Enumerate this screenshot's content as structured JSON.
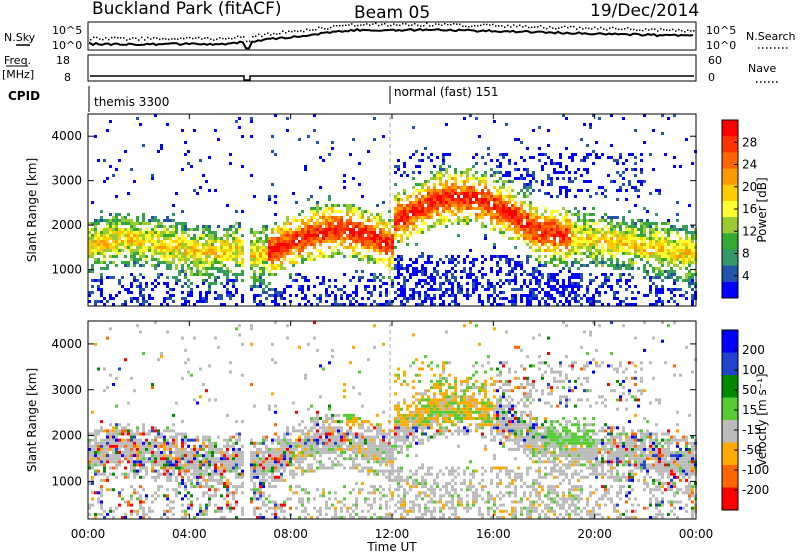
{
  "header": {
    "site": "Buckland Park (fitACF)",
    "beam": "Beam 05",
    "date": "19/Dec/2014"
  },
  "panels": {
    "noise": {
      "left_label": "N.Sky",
      "right_label": "N.Search",
      "left_ticks": [
        "10^5",
        "10^0"
      ],
      "right_ticks": [
        "10^5",
        "10^0"
      ]
    },
    "freq": {
      "left_label_1": "Freq.",
      "left_label_2": "[MHz]",
      "right_label": "Nave",
      "left_ticks": [
        "18",
        "8"
      ],
      "right_ticks": [
        "60",
        "0"
      ]
    },
    "cpid": {
      "label": "CPID",
      "program_1": "themis 3300",
      "program_2": "normal (fast) 151"
    }
  },
  "x_axis": {
    "title": "Time UT",
    "ticks": [
      "00:00",
      "04:00",
      "08:00",
      "12:00",
      "16:00",
      "20:00",
      "00:00"
    ]
  },
  "power_colorbar": {
    "title": "Power [dB]",
    "ticks": [
      "28",
      "24",
      "20",
      "16",
      "12",
      "8",
      "4"
    ],
    "colors": [
      "#ff0000",
      "#ff3300",
      "#ff6600",
      "#ff9900",
      "#ffcc00",
      "#ffff33",
      "#99cc33",
      "#33aa33",
      "#339966",
      "#2255aa",
      "#0000ff"
    ]
  },
  "velocity_colorbar": {
    "title": "Velocity [m s⁻¹]",
    "ticks": [
      "200",
      "100",
      "50",
      "15",
      "-15",
      "-50",
      "-100",
      "-200"
    ],
    "colors": [
      "#0000ff",
      "#2244cc",
      "#008800",
      "#55cc33",
      "#bbbbbb",
      "#ffaa00",
      "#ff6600",
      "#ff0000"
    ]
  },
  "chart_data": [
    {
      "type": "heatmap",
      "title": "Power",
      "xlabel": "Time UT",
      "ylabel": "Slant Range [km]",
      "x_range_hours": [
        0,
        24
      ],
      "ylim_km": [
        180,
        4500
      ],
      "y_ticks": [
        1000,
        2000,
        3000,
        4000
      ],
      "colorbar_label": "Power [dB]",
      "colorbar_ticks": [
        4,
        8,
        12,
        16,
        20,
        24,
        28
      ],
      "clim_db": [
        0,
        32
      ]
    },
    {
      "type": "heatmap",
      "title": "Velocity",
      "xlabel": "Time UT",
      "ylabel": "Slant Range [km]",
      "x_range_hours": [
        0,
        24
      ],
      "ylim_km": [
        180,
        4500
      ],
      "y_ticks": [
        1000,
        2000,
        3000,
        4000
      ],
      "colorbar_label": "Velocity [m s⁻¹]",
      "colorbar_ticks": [
        -200,
        -100,
        -50,
        -15,
        15,
        50,
        100,
        200
      ]
    }
  ]
}
